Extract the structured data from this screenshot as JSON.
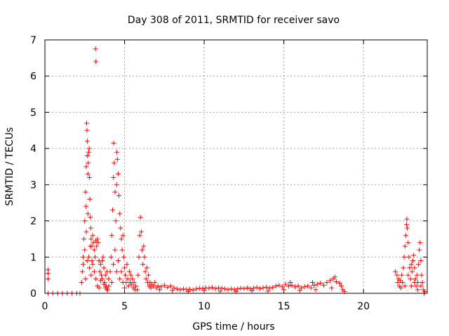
{
  "chart_data": {
    "type": "scatter",
    "title": "Day 308 of 2011, SRMTID for receiver savo",
    "xlabel": "GPS time / hours",
    "ylabel": "SRMTID / TECUs",
    "xlim": [
      0,
      24
    ],
    "ylim": [
      0,
      7
    ],
    "x_ticks": [
      0,
      5,
      10,
      15,
      20
    ],
    "x_tick_labels": [
      "0",
      "5",
      "10",
      "15",
      "20"
    ],
    "y_ticks": [
      0,
      1,
      2,
      3,
      4,
      5,
      6,
      7
    ],
    "y_tick_labels": [
      "0",
      "1",
      "2",
      "3",
      "4",
      "5",
      "6",
      "7"
    ],
    "grid": true,
    "marker": "+",
    "color": "#ff0000",
    "series": [
      {
        "name": "SRMTID",
        "points": [
          [
            0.2,
            0.65
          ],
          [
            0.2,
            0.55
          ],
          [
            0.2,
            0.4
          ],
          [
            0.2,
            0.0
          ],
          [
            0.5,
            0.0
          ],
          [
            0.8,
            0.0
          ],
          [
            1.1,
            0.0
          ],
          [
            1.4,
            0.0
          ],
          [
            1.7,
            0.0
          ],
          [
            2.0,
            0.0
          ],
          [
            2.2,
            0.0
          ],
          [
            2.3,
            0.3
          ],
          [
            2.35,
            0.6
          ],
          [
            2.4,
            1.0
          ],
          [
            2.45,
            1.5
          ],
          [
            2.5,
            2.0
          ],
          [
            2.55,
            2.8
          ],
          [
            2.58,
            2.4
          ],
          [
            2.6,
            3.5
          ],
          [
            2.62,
            4.7
          ],
          [
            2.64,
            4.5
          ],
          [
            2.66,
            4.2
          ],
          [
            2.68,
            3.8
          ],
          [
            2.7,
            3.3
          ],
          [
            2.72,
            3.6
          ],
          [
            2.75,
            3.9
          ],
          [
            2.78,
            4.0
          ],
          [
            2.8,
            3.2
          ],
          [
            2.82,
            2.6
          ],
          [
            2.85,
            2.1
          ],
          [
            2.88,
            1.8
          ],
          [
            2.9,
            1.5
          ],
          [
            2.95,
            1.3
          ],
          [
            3.0,
            1.6
          ],
          [
            3.05,
            1.4
          ],
          [
            3.1,
            1.2
          ],
          [
            3.15,
            1.0
          ],
          [
            3.2,
            1.45
          ],
          [
            3.25,
            1.3
          ],
          [
            3.3,
            1.5
          ],
          [
            3.35,
            1.4
          ],
          [
            3.4,
            0.9
          ],
          [
            3.45,
            0.6
          ],
          [
            3.5,
            0.8
          ],
          [
            3.55,
            0.5
          ],
          [
            3.6,
            0.4
          ],
          [
            3.65,
            1.0
          ],
          [
            3.7,
            0.7
          ],
          [
            3.75,
            0.3
          ],
          [
            3.8,
            0.5
          ],
          [
            3.85,
            0.2
          ],
          [
            3.9,
            0.6
          ],
          [
            3.95,
            0.1
          ],
          [
            4.0,
            0.4
          ],
          [
            3.18,
            6.75
          ],
          [
            3.2,
            6.4
          ],
          [
            2.4,
            0.8
          ],
          [
            2.5,
            1.2
          ],
          [
            2.6,
            1.7
          ],
          [
            2.7,
            2.2
          ],
          [
            2.75,
            1.0
          ],
          [
            2.8,
            0.7
          ],
          [
            2.9,
            0.5
          ],
          [
            3.0,
            0.8
          ],
          [
            3.1,
            0.6
          ],
          [
            3.2,
            0.4
          ],
          [
            3.3,
            0.2
          ],
          [
            3.4,
            0.15
          ],
          [
            3.5,
            0.35
          ],
          [
            3.6,
            0.9
          ],
          [
            3.7,
            0.25
          ],
          [
            3.8,
            0.15
          ],
          [
            3.9,
            0.1
          ],
          [
            4.0,
            0.2
          ],
          [
            2.55,
            0.4
          ],
          [
            2.65,
            0.9
          ],
          [
            2.85,
            1.3
          ],
          [
            2.95,
            0.9
          ],
          [
            4.1,
            0.6
          ],
          [
            4.15,
            1.0
          ],
          [
            4.2,
            1.6
          ],
          [
            4.25,
            2.3
          ],
          [
            4.3,
            3.2
          ],
          [
            4.32,
            4.15
          ],
          [
            4.35,
            3.6
          ],
          [
            4.4,
            2.8
          ],
          [
            4.45,
            2.0
          ],
          [
            4.5,
            3.0
          ],
          [
            4.52,
            3.9
          ],
          [
            4.55,
            3.7
          ],
          [
            4.6,
            3.3
          ],
          [
            4.65,
            2.7
          ],
          [
            4.7,
            2.2
          ],
          [
            4.75,
            1.8
          ],
          [
            4.8,
            1.5
          ],
          [
            4.85,
            1.2
          ],
          [
            4.9,
            1.6
          ],
          [
            4.95,
            1.0
          ],
          [
            5.0,
            0.7
          ],
          [
            5.05,
            0.5
          ],
          [
            5.1,
            0.3
          ],
          [
            5.15,
            0.8
          ],
          [
            5.2,
            0.4
          ],
          [
            5.25,
            0.2
          ],
          [
            4.2,
            0.3
          ],
          [
            4.3,
            0.8
          ],
          [
            4.4,
            1.2
          ],
          [
            4.5,
            0.6
          ],
          [
            4.6,
            0.9
          ],
          [
            4.7,
            0.4
          ],
          [
            4.8,
            0.6
          ],
          [
            4.9,
            0.3
          ],
          [
            5.0,
            0.15
          ],
          [
            5.3,
            0.6
          ],
          [
            5.35,
            0.3
          ],
          [
            5.4,
            0.5
          ],
          [
            5.45,
            0.25
          ],
          [
            5.5,
            0.4
          ],
          [
            5.55,
            0.15
          ],
          [
            5.6,
            0.3
          ],
          [
            5.65,
            0.1
          ],
          [
            5.7,
            0.2
          ],
          [
            5.8,
            0.1
          ],
          [
            5.85,
            0.5
          ],
          [
            5.9,
            1.0
          ],
          [
            5.95,
            1.6
          ],
          [
            6.0,
            2.1
          ],
          [
            6.05,
            1.7
          ],
          [
            6.1,
            1.2
          ],
          [
            6.15,
            0.8
          ],
          [
            6.2,
            1.3
          ],
          [
            6.25,
            1.0
          ],
          [
            6.3,
            0.6
          ],
          [
            6.35,
            0.4
          ],
          [
            6.4,
            0.7
          ],
          [
            6.45,
            0.3
          ],
          [
            6.5,
            0.5
          ],
          [
            6.55,
            0.2
          ],
          [
            6.6,
            0.3
          ],
          [
            6.65,
            0.15
          ],
          [
            6.7,
            0.25
          ],
          [
            6.8,
            0.2
          ],
          [
            6.9,
            0.3
          ],
          [
            7.0,
            0.15
          ],
          [
            7.1,
            0.2
          ],
          [
            7.3,
            0.18
          ],
          [
            7.5,
            0.22
          ],
          [
            7.7,
            0.17
          ],
          [
            7.9,
            0.2
          ],
          [
            8.1,
            0.15
          ],
          [
            8.3,
            0.12
          ],
          [
            8.5,
            0.1
          ],
          [
            8.7,
            0.12
          ],
          [
            8.9,
            0.1
          ],
          [
            9.1,
            0.11
          ],
          [
            9.3,
            0.09
          ],
          [
            9.5,
            0.12
          ],
          [
            9.7,
            0.14
          ],
          [
            9.9,
            0.13
          ],
          [
            10.1,
            0.15
          ],
          [
            10.3,
            0.14
          ],
          [
            10.5,
            0.16
          ],
          [
            10.7,
            0.13
          ],
          [
            10.9,
            0.15
          ],
          [
            11.1,
            0.14
          ],
          [
            11.3,
            0.12
          ],
          [
            11.5,
            0.1
          ],
          [
            11.7,
            0.12
          ],
          [
            11.9,
            0.1
          ],
          [
            12.1,
            0.12
          ],
          [
            12.3,
            0.14
          ],
          [
            12.5,
            0.13
          ],
          [
            12.7,
            0.15
          ],
          [
            12.9,
            0.12
          ],
          [
            13.1,
            0.14
          ],
          [
            13.3,
            0.16
          ],
          [
            13.5,
            0.13
          ],
          [
            13.7,
            0.15
          ],
          [
            13.9,
            0.17
          ],
          [
            14.1,
            0.14
          ],
          [
            14.3,
            0.16
          ],
          [
            14.5,
            0.2
          ],
          [
            14.7,
            0.22
          ],
          [
            14.9,
            0.18
          ],
          [
            15.1,
            0.25
          ],
          [
            15.3,
            0.2
          ],
          [
            15.5,
            0.22
          ],
          [
            15.7,
            0.18
          ],
          [
            15.9,
            0.2
          ],
          [
            16.1,
            0.15
          ],
          [
            16.3,
            0.18
          ],
          [
            16.5,
            0.2
          ],
          [
            16.7,
            0.15
          ],
          [
            16.9,
            0.22
          ],
          [
            17.1,
            0.25
          ],
          [
            17.3,
            0.28
          ],
          [
            17.5,
            0.22
          ],
          [
            17.7,
            0.3
          ],
          [
            17.9,
            0.35
          ],
          [
            18.1,
            0.4
          ],
          [
            18.3,
            0.32
          ],
          [
            18.5,
            0.28
          ],
          [
            18.6,
            0.2
          ],
          [
            18.7,
            0.1
          ],
          [
            18.8,
            0.05
          ],
          [
            7.2,
            0.1
          ],
          [
            8.0,
            0.08
          ],
          [
            9.0,
            0.05
          ],
          [
            10.0,
            0.08
          ],
          [
            11.0,
            0.06
          ],
          [
            12.0,
            0.05
          ],
          [
            13.0,
            0.07
          ],
          [
            14.0,
            0.06
          ],
          [
            15.0,
            0.1
          ],
          [
            16.0,
            0.08
          ],
          [
            17.0,
            0.1
          ],
          [
            18.0,
            0.15
          ],
          [
            18.2,
            0.45
          ],
          [
            15.4,
            0.3
          ],
          [
            16.8,
            0.3
          ],
          [
            22.0,
            0.6
          ],
          [
            22.1,
            0.5
          ],
          [
            22.15,
            0.3
          ],
          [
            22.2,
            0.4
          ],
          [
            22.25,
            0.2
          ],
          [
            22.3,
            0.35
          ],
          [
            22.35,
            0.15
          ],
          [
            22.4,
            0.5
          ],
          [
            22.45,
            0.3
          ],
          [
            22.5,
            0.7
          ],
          [
            22.55,
            1.0
          ],
          [
            22.6,
            1.3
          ],
          [
            22.65,
            1.6
          ],
          [
            22.7,
            1.9
          ],
          [
            22.72,
            2.05
          ],
          [
            22.75,
            1.8
          ],
          [
            22.8,
            1.4
          ],
          [
            22.85,
            1.0
          ],
          [
            22.9,
            0.7
          ],
          [
            22.95,
            0.4
          ],
          [
            23.0,
            0.2
          ],
          [
            23.05,
            0.6
          ],
          [
            23.1,
            0.9
          ],
          [
            23.15,
            1.05
          ],
          [
            23.2,
            0.7
          ],
          [
            23.25,
            0.4
          ],
          [
            23.3,
            0.2
          ],
          [
            23.35,
            0.5
          ],
          [
            23.4,
            0.3
          ],
          [
            23.45,
            0.8
          ],
          [
            23.5,
            1.2
          ],
          [
            23.55,
            1.4
          ],
          [
            23.6,
            0.9
          ],
          [
            23.65,
            0.5
          ],
          [
            23.7,
            0.3
          ],
          [
            23.75,
            0.1
          ],
          [
            23.8,
            0.0
          ],
          [
            23.85,
            0.05
          ],
          [
            22.6,
            0.2
          ],
          [
            22.8,
            0.5
          ],
          [
            23.0,
            0.8
          ],
          [
            23.2,
            0.3
          ],
          [
            23.4,
            0.1
          ],
          [
            23.6,
            0.2
          ]
        ]
      }
    ]
  }
}
